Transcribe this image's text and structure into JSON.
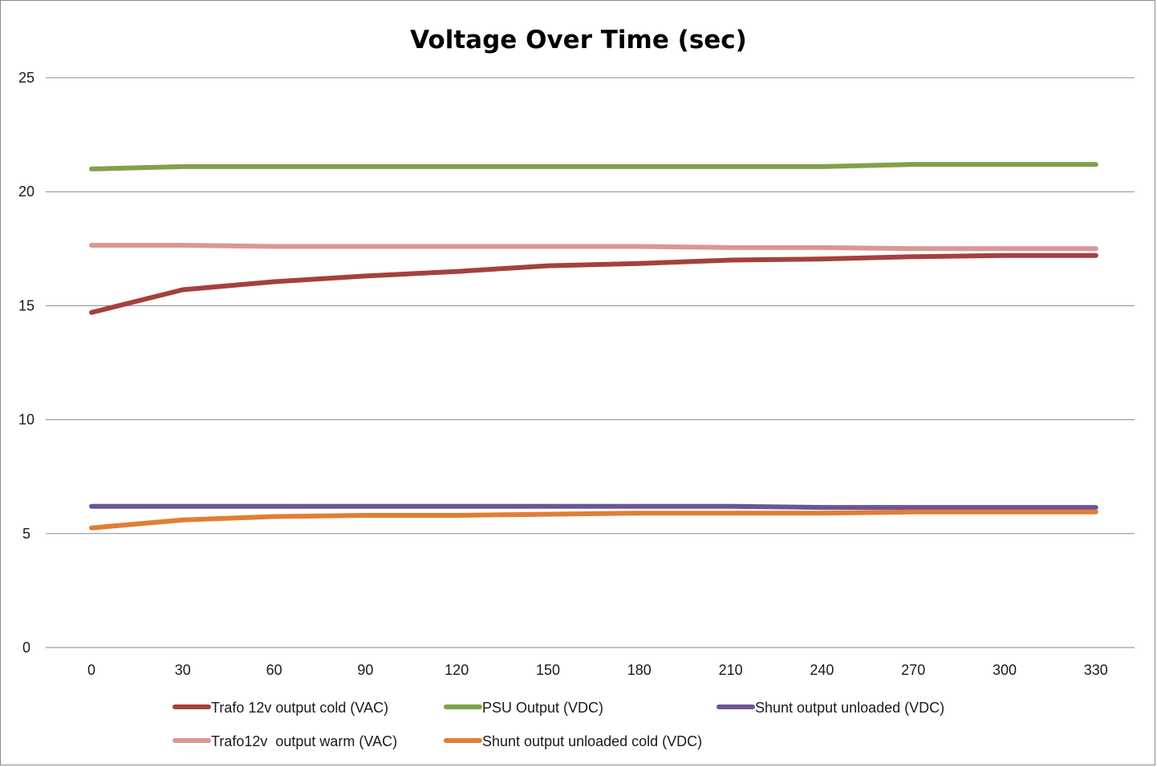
{
  "chart_data": {
    "type": "line",
    "title": "Voltage Over Time (sec)",
    "xlabel": "",
    "ylabel": "",
    "x": [
      0,
      30,
      60,
      90,
      120,
      150,
      180,
      210,
      240,
      270,
      300,
      330
    ],
    "ylim": [
      0,
      25
    ],
    "yticks": [
      0,
      5,
      10,
      15,
      20,
      25
    ],
    "grid": "horizontal",
    "legend_position": "bottom",
    "series": [
      {
        "name": "Trafo 12v output cold (VAC)",
        "color": "#a5403d",
        "values": [
          14.7,
          15.7,
          16.05,
          16.3,
          16.5,
          16.75,
          16.85,
          17.0,
          17.05,
          17.15,
          17.2,
          17.2
        ]
      },
      {
        "name": "PSU Output (VDC)",
        "color": "#7fa24a",
        "values": [
          21.0,
          21.1,
          21.1,
          21.1,
          21.1,
          21.1,
          21.1,
          21.1,
          21.1,
          21.2,
          21.2,
          21.2
        ]
      },
      {
        "name": "Shunt output unloaded (VDC)",
        "color": "#6c5692",
        "values": [
          6.2,
          6.2,
          6.2,
          6.2,
          6.2,
          6.2,
          6.2,
          6.2,
          6.15,
          6.15,
          6.15,
          6.15
        ]
      },
      {
        "name": "Trafo12v  output warm (VAC)",
        "color": "#d99794",
        "values": [
          17.65,
          17.65,
          17.6,
          17.6,
          17.6,
          17.6,
          17.6,
          17.55,
          17.55,
          17.5,
          17.5,
          17.5
        ]
      },
      {
        "name": "Shunt output unloaded cold (VDC)",
        "color": "#e07e36",
        "values": [
          5.25,
          5.6,
          5.75,
          5.8,
          5.8,
          5.85,
          5.9,
          5.9,
          5.9,
          5.95,
          5.95,
          5.95
        ]
      }
    ]
  }
}
